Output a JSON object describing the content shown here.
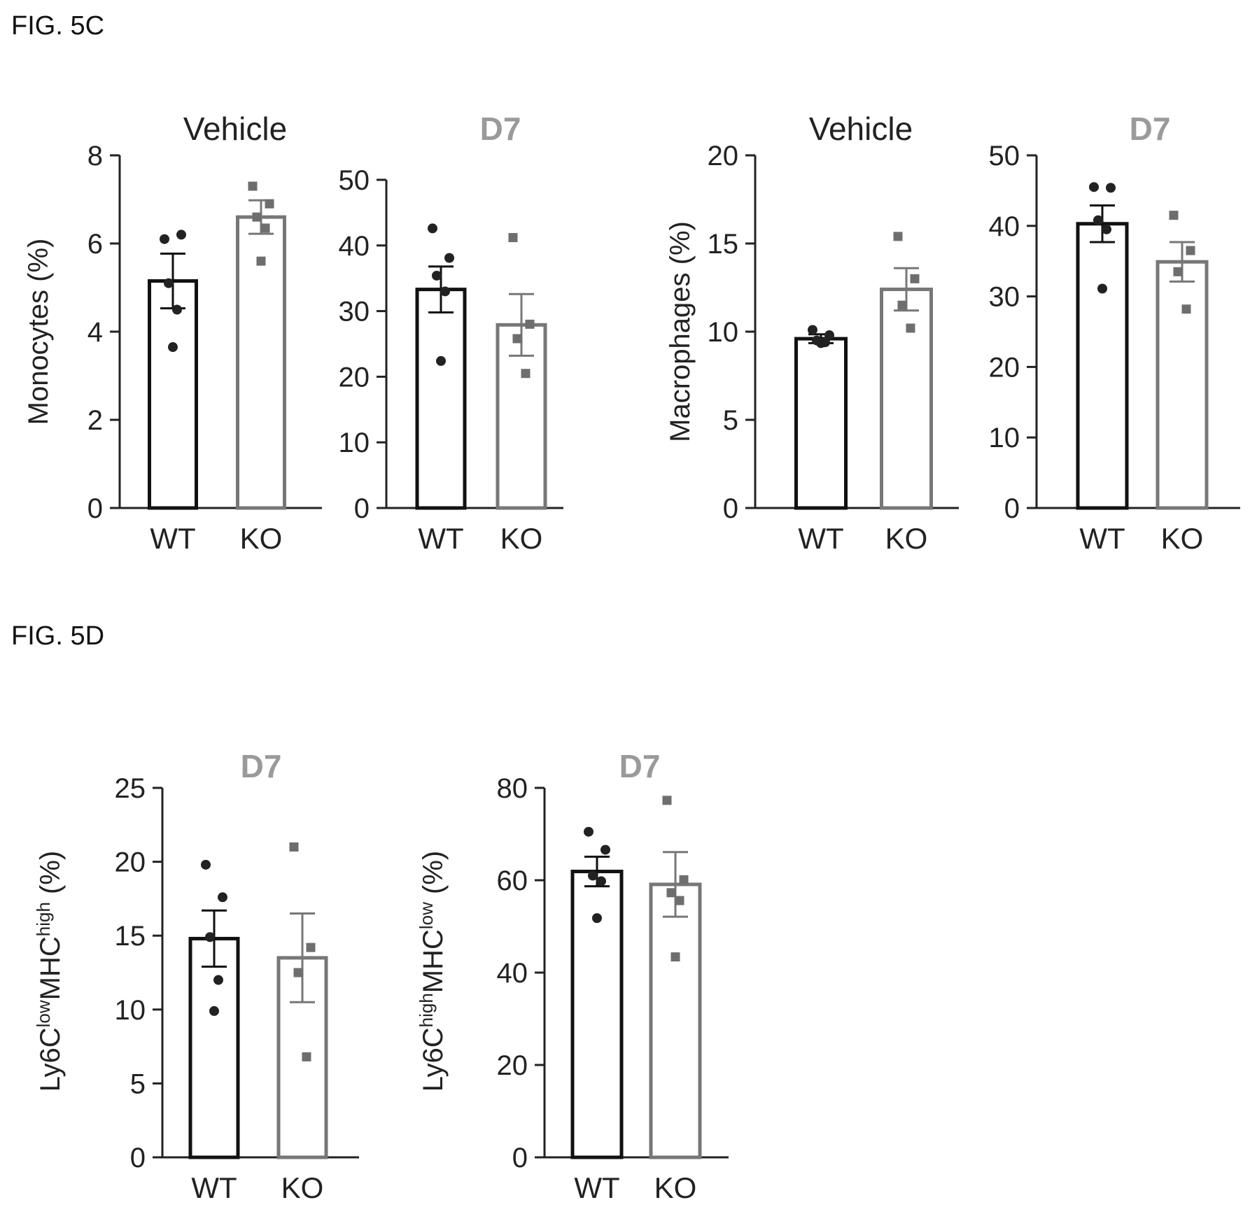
{
  "figures": [
    {
      "label": "FIG. 5C"
    },
    {
      "label": "FIG. 5D"
    }
  ],
  "colors": {
    "wt_bar": "#111111",
    "ko_bar": "#777777",
    "wt_point": "#222222",
    "ko_point": "#6e6e6e",
    "axis": "#222222",
    "vehicle_title": "#222222",
    "d7_title": "#9a9a9a"
  },
  "chart_data": [
    {
      "type": "bar",
      "title": "Vehicle",
      "ylabel": "Monocytes (%)",
      "categories": [
        "WT",
        "KO"
      ],
      "values": [
        5.15,
        6.6
      ],
      "errors": [
        0.62,
        0.38
      ],
      "points": [
        [
          6.1,
          6.2,
          5.1,
          4.5,
          3.65
        ],
        [
          7.3,
          6.9,
          6.6,
          6.35,
          5.6
        ]
      ],
      "ylim": [
        0,
        8
      ],
      "yticks": [
        "0",
        "2",
        "4",
        "6",
        "8"
      ],
      "grid": false
    },
    {
      "type": "bar",
      "title": "D7",
      "ylabel": "",
      "categories": [
        "WT",
        "KO"
      ],
      "values": [
        33.3,
        27.9
      ],
      "errors": [
        3.5,
        4.7
      ],
      "points": [
        [
          42.6,
          38.1,
          35.4,
          33.0,
          22.4
        ],
        [
          41.2,
          28.0,
          25.8,
          20.5
        ]
      ],
      "ylim": [
        0,
        50
      ],
      "yticks": [
        "0",
        "10",
        "20",
        "30",
        "40",
        "50"
      ],
      "grid": false
    },
    {
      "type": "bar",
      "title": "Vehicle",
      "ylabel": "Macrophages (%)",
      "categories": [
        "WT",
        "KO"
      ],
      "values": [
        9.6,
        12.4
      ],
      "errors": [
        0.25,
        1.2
      ],
      "points": [
        [
          10.1,
          9.8,
          9.5,
          9.4,
          9.35
        ],
        [
          15.4,
          13.0,
          11.5,
          10.2
        ]
      ],
      "ylim": [
        0,
        20
      ],
      "yticks": [
        "0",
        "5",
        "10",
        "15",
        "20"
      ],
      "grid": false
    },
    {
      "type": "bar",
      "title": "D7",
      "ylabel": "",
      "categories": [
        "WT",
        "KO"
      ],
      "values": [
        40.3,
        34.9
      ],
      "errors": [
        2.6,
        2.8
      ],
      "points": [
        [
          45.5,
          45.4,
          40.8,
          39.5,
          31.1
        ],
        [
          41.5,
          36.5,
          33.5,
          28.2
        ]
      ],
      "ylim": [
        0,
        50
      ],
      "yticks": [
        "0",
        "10",
        "20",
        "30",
        "40",
        "50"
      ],
      "grid": false
    },
    {
      "type": "bar",
      "title": "D7",
      "ylabel_parts": [
        "Ly6C",
        "low",
        "MHC",
        "high",
        " (%)"
      ],
      "categories": [
        "WT",
        "KO"
      ],
      "values": [
        14.8,
        13.5
      ],
      "errors": [
        1.9,
        3.0
      ],
      "points": [
        [
          19.8,
          17.6,
          14.9,
          12.0,
          9.9
        ],
        [
          21.0,
          14.2,
          12.5,
          6.8
        ]
      ],
      "ylim": [
        0,
        25
      ],
      "yticks": [
        "0",
        "5",
        "10",
        "15",
        "20",
        "25"
      ],
      "grid": false
    },
    {
      "type": "bar",
      "title": "D7",
      "ylabel_parts": [
        "Ly6C",
        "high",
        "MHC",
        "low",
        " (%)"
      ],
      "categories": [
        "WT",
        "KO"
      ],
      "values": [
        61.9,
        59.1
      ],
      "errors": [
        3.2,
        7.0
      ],
      "points": [
        [
          70.5,
          66.6,
          61.0,
          59.8,
          51.8
        ],
        [
          77.3,
          60.1,
          57.3,
          55.6,
          43.4
        ]
      ],
      "ylim": [
        0,
        80
      ],
      "yticks": [
        "0",
        "20",
        "40",
        "60",
        "80"
      ],
      "grid": false
    }
  ]
}
